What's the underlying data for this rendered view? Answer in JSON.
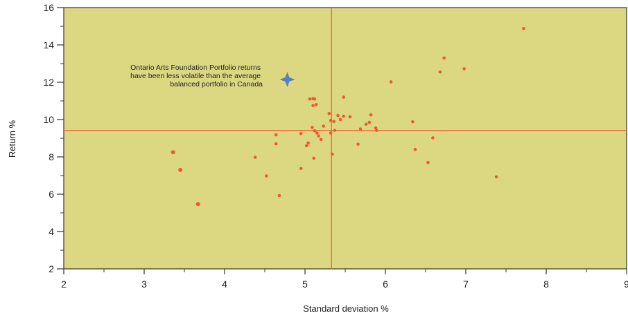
{
  "chart_data": {
    "type": "scatter",
    "xlabel": "Standard deviation %",
    "ylabel": "Return %",
    "xlim": [
      2,
      9
    ],
    "ylim": [
      2,
      16
    ],
    "x_ticks": [
      2,
      3,
      4,
      5,
      6,
      7,
      8,
      9
    ],
    "y_ticks": [
      2,
      4,
      6,
      8,
      10,
      12,
      14,
      16
    ],
    "grid": false,
    "reference_lines": {
      "x": 5.33,
      "y": 9.42
    },
    "annotation": {
      "lines": [
        "Ontario Arts Foundation Portfolio returns",
        "have been less volatile than the average",
        "balanced portfolio in Canada"
      ]
    },
    "highlight_point": {
      "x": 4.78,
      "y": 12.15
    },
    "series": [
      {
        "values": [
          {
            "x": 3.36,
            "y": 8.25
          },
          {
            "x": 3.45,
            "y": 7.3
          },
          {
            "x": 3.67,
            "y": 5.47
          },
          {
            "x": 4.38,
            "y": 7.98
          },
          {
            "x": 4.52,
            "y": 6.98
          },
          {
            "x": 4.64,
            "y": 9.18
          },
          {
            "x": 4.64,
            "y": 8.7
          },
          {
            "x": 4.68,
            "y": 5.93
          },
          {
            "x": 4.95,
            "y": 9.25
          },
          {
            "x": 4.95,
            "y": 7.38
          },
          {
            "x": 5.02,
            "y": 8.6
          },
          {
            "x": 5.04,
            "y": 8.75
          },
          {
            "x": 5.06,
            "y": 11.1
          },
          {
            "x": 5.1,
            "y": 11.12
          },
          {
            "x": 5.12,
            "y": 11.1
          },
          {
            "x": 5.1,
            "y": 10.75
          },
          {
            "x": 5.14,
            "y": 10.8
          },
          {
            "x": 5.09,
            "y": 9.58
          },
          {
            "x": 5.12,
            "y": 9.4
          },
          {
            "x": 5.15,
            "y": 9.28
          },
          {
            "x": 5.17,
            "y": 9.12
          },
          {
            "x": 5.2,
            "y": 8.93
          },
          {
            "x": 5.11,
            "y": 7.93
          },
          {
            "x": 5.23,
            "y": 9.65
          },
          {
            "x": 5.3,
            "y": 10.32
          },
          {
            "x": 5.32,
            "y": 9.95
          },
          {
            "x": 5.32,
            "y": 9.28
          },
          {
            "x": 5.36,
            "y": 9.9
          },
          {
            "x": 5.37,
            "y": 9.42
          },
          {
            "x": 5.34,
            "y": 8.15
          },
          {
            "x": 5.41,
            "y": 10.22
          },
          {
            "x": 5.44,
            "y": 10.0
          },
          {
            "x": 5.48,
            "y": 10.18
          },
          {
            "x": 5.48,
            "y": 11.2
          },
          {
            "x": 5.56,
            "y": 10.15
          },
          {
            "x": 5.66,
            "y": 8.68
          },
          {
            "x": 5.69,
            "y": 9.5
          },
          {
            "x": 5.76,
            "y": 9.75
          },
          {
            "x": 5.8,
            "y": 9.85
          },
          {
            "x": 5.82,
            "y": 10.25
          },
          {
            "x": 5.88,
            "y": 9.55
          },
          {
            "x": 5.89,
            "y": 9.42
          },
          {
            "x": 6.07,
            "y": 12.02
          },
          {
            "x": 6.34,
            "y": 9.88
          },
          {
            "x": 6.37,
            "y": 8.4
          },
          {
            "x": 6.53,
            "y": 7.7
          },
          {
            "x": 6.59,
            "y": 9.02
          },
          {
            "x": 6.68,
            "y": 12.55
          },
          {
            "x": 6.73,
            "y": 13.3
          },
          {
            "x": 6.98,
            "y": 12.72
          },
          {
            "x": 7.38,
            "y": 6.93
          },
          {
            "x": 7.72,
            "y": 14.88
          }
        ]
      }
    ],
    "colors": {
      "plot_background": "#dcd882",
      "point": "#ef5a2b",
      "reference_line": "#ef6a3a",
      "highlight": "#5b7fbd",
      "axis": "#333333"
    }
  }
}
